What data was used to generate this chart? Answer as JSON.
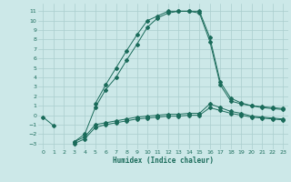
{
  "xlabel": "Humidex (Indice chaleur)",
  "bg_color": "#cce8e8",
  "grid_color": "#aacece",
  "line_color": "#1a6b5a",
  "x_data": [
    0,
    1,
    2,
    3,
    4,
    5,
    6,
    7,
    8,
    9,
    10,
    11,
    12,
    13,
    14,
    15,
    16,
    17,
    18,
    19,
    20,
    21,
    22,
    23
  ],
  "line1": [
    null,
    null,
    null,
    -3.0,
    -2.5,
    -1.3,
    -1.0,
    -0.8,
    -0.6,
    -0.4,
    -0.3,
    -0.2,
    -0.1,
    -0.1,
    0.0,
    0.0,
    0.8,
    0.5,
    0.2,
    0.0,
    -0.2,
    -0.3,
    -0.4,
    -0.5
  ],
  "line2": [
    -0.2,
    -1.1,
    null,
    -2.8,
    -2.3,
    -1.0,
    -0.8,
    -0.6,
    -0.4,
    -0.2,
    -0.1,
    0.0,
    0.1,
    0.1,
    0.2,
    0.2,
    1.2,
    0.8,
    0.4,
    0.2,
    -0.1,
    -0.2,
    -0.3,
    -0.4
  ],
  "line3": [
    null,
    null,
    null,
    -2.8,
    -2.0,
    0.8,
    2.7,
    4.0,
    5.8,
    7.5,
    9.3,
    10.3,
    10.8,
    11.0,
    11.0,
    10.8,
    7.8,
    3.2,
    1.5,
    1.2,
    1.0,
    0.8,
    0.7,
    0.6
  ],
  "line4": [
    null,
    null,
    null,
    null,
    null,
    1.2,
    3.2,
    5.0,
    6.8,
    8.5,
    10.0,
    10.5,
    11.0,
    11.0,
    11.0,
    11.0,
    8.2,
    3.5,
    1.8,
    1.3,
    1.0,
    0.9,
    0.8,
    0.7
  ],
  "ylim": [
    -3.6,
    11.8
  ],
  "xlim": [
    -0.5,
    23.5
  ],
  "yticks": [
    11,
    10,
    9,
    8,
    7,
    6,
    5,
    4,
    3,
    2,
    1,
    0,
    -1,
    -2,
    -3
  ],
  "xticks": [
    0,
    1,
    2,
    3,
    4,
    5,
    6,
    7,
    8,
    9,
    10,
    11,
    12,
    13,
    14,
    15,
    16,
    17,
    18,
    19,
    20,
    21,
    22,
    23
  ]
}
